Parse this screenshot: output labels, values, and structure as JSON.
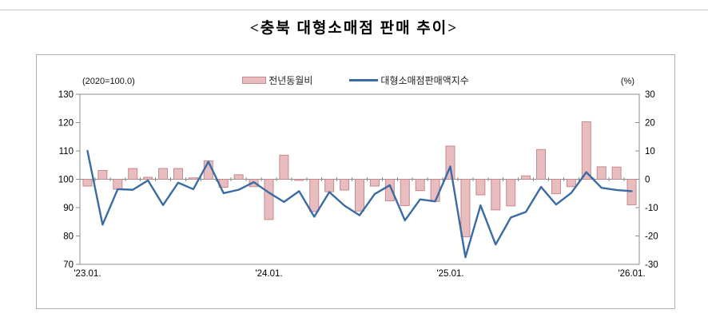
{
  "title": "<충북 대형소매점 판매 추이>",
  "legend": {
    "bar_label": "전년동월비",
    "line_label": "대형소매점판매액지수"
  },
  "axis_notes": {
    "left": "(2020=100.0)",
    "right": "(%)"
  },
  "colors": {
    "bar_fill": "#E8BDBF",
    "bar_border": "#C8898D",
    "line": "#3A6BA4",
    "axis": "#8d8d8d"
  },
  "chart_data": {
    "type": "bar+line combo, monthly",
    "title": "충북 대형소매점 판매 추이",
    "x": [
      "2023-01",
      "2023-02",
      "2023-03",
      "2023-04",
      "2023-05",
      "2023-06",
      "2023-07",
      "2023-08",
      "2023-09",
      "2023-10",
      "2023-11",
      "2023-12",
      "2024-01",
      "2024-02",
      "2024-03",
      "2024-04",
      "2024-05",
      "2024-06",
      "2024-07",
      "2024-08",
      "2024-09",
      "2024-10",
      "2024-11",
      "2024-12",
      "2025-01",
      "2025-02",
      "2025-03",
      "2025-04",
      "2025-05",
      "2025-06",
      "2025-07",
      "2025-08",
      "2025-09",
      "2025-10",
      "2025-11",
      "2025-12",
      "2026-01"
    ],
    "x_tick_labels": [
      "'23.01.",
      "'24.01.",
      "'25.01.",
      "'26.01."
    ],
    "x_tick_positions": [
      0,
      12,
      24,
      36
    ],
    "series": [
      {
        "name": "전년동월비",
        "type": "bar",
        "axis": "right",
        "unit": "%",
        "values": [
          -2.4,
          3.1,
          -3.5,
          3.8,
          0.7,
          3.8,
          3.8,
          0.5,
          6.5,
          -2.8,
          1.6,
          -2.6,
          -14.2,
          8.5,
          -0.4,
          -11.4,
          -4.4,
          -3.8,
          -11.2,
          -2.4,
          -7.6,
          -9.3,
          -4.0,
          -7.8,
          11.7,
          -20.3,
          -5.5,
          -10.8,
          -9.4,
          1.2,
          10.5,
          -5.1,
          -2.6,
          20.3,
          4.4,
          4.3,
          -9.0
        ]
      },
      {
        "name": "대형소매점판매액지수",
        "type": "line",
        "axis": "left",
        "unit": "index (2020=100.0)",
        "values": [
          110.0,
          84.0,
          96.5,
          96.3,
          99.6,
          90.9,
          98.8,
          96.5,
          106.2,
          95.1,
          96.3,
          99.0,
          95.3,
          92.0,
          95.8,
          86.8,
          95.5,
          90.7,
          87.3,
          94.8,
          97.9,
          85.5,
          92.9,
          92.2,
          104.5,
          72.5,
          90.8,
          77.0,
          86.5,
          88.5,
          97.3,
          91.1,
          95.2,
          102.5,
          97.0,
          96.2,
          95.8
        ]
      }
    ],
    "left_axis": {
      "ticks": [
        130,
        120,
        110,
        100,
        90,
        80,
        70
      ],
      "range": [
        70,
        130
      ]
    },
    "right_axis": {
      "ticks": [
        30,
        20,
        10,
        0,
        -10,
        -20,
        -30
      ],
      "range": [
        -30,
        30
      ]
    },
    "grid": "none (frame + zero line only)",
    "legend_position": "top center"
  }
}
